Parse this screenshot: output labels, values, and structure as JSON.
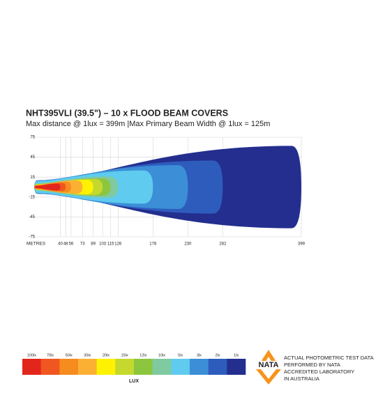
{
  "chart_data": {
    "type": "beam",
    "title": "NHT395VLI (39.5\") – 10 x FLOOD BEAM COVERS",
    "subtitle": "Max distance @ 1lux = 399m  |Max Primary  Beam Width @ 1lux = 125m",
    "x_label": "METRES",
    "xlim": [
      0,
      399
    ],
    "ylim": [
      -75,
      75
    ],
    "xticks": [
      40,
      48,
      56,
      73,
      89,
      103,
      115,
      126,
      178,
      230,
      282,
      399
    ],
    "yticks": [
      75,
      45,
      15,
      -15,
      -45,
      -75
    ],
    "grid": true,
    "levels": [
      {
        "label": "100lx",
        "color": "#e3261c",
        "half_width": 5
      },
      {
        "label": "70lx",
        "color": "#f0561f",
        "half_width": 6
      },
      {
        "label": "50lx",
        "color": "#f68b1f",
        "half_width": 8
      },
      {
        "label": "30lx",
        "color": "#fbb034",
        "half_width": 10
      },
      {
        "label": "20lx",
        "color": "#fff200",
        "half_width": 11
      },
      {
        "label": "15lx",
        "color": "#c4d82e",
        "half_width": 12
      },
      {
        "label": "12lx",
        "color": "#8cc63f",
        "half_width": 13
      },
      {
        "label": "10lx",
        "color": "#7fcaa0",
        "half_width": 16
      },
      {
        "label": "5lx",
        "color": "#5fcbef",
        "half_width": 25
      },
      {
        "label": "3lx",
        "color": "#3c8ed6",
        "half_width": 33
      },
      {
        "label": "2lx",
        "color": "#2e5cbd",
        "half_width": 40
      },
      {
        "label": "1lx",
        "color": "#232e8e",
        "half_width": 62
      }
    ],
    "legend_title": "LUX"
  },
  "badge": {
    "logo": "NATA",
    "lines": [
      "ACTUAL PHOTOMETRIC TEST DATA",
      "PERFORMED BY NATA",
      "ACCREDITED LABORATORY",
      "IN AUSTRALIA"
    ]
  }
}
